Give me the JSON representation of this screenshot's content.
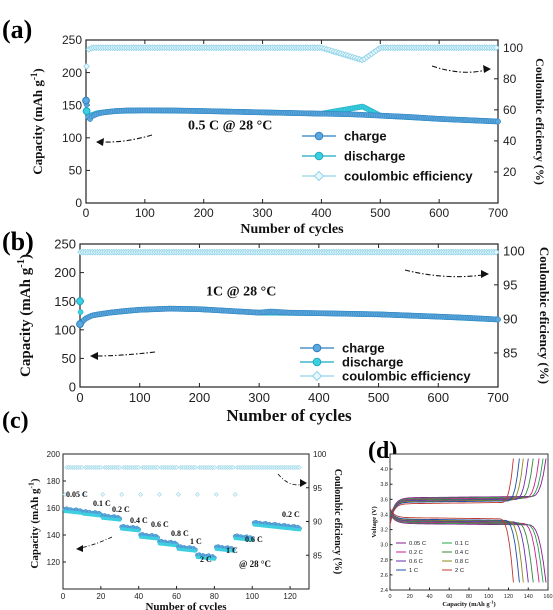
{
  "chart_data": [
    {
      "panel": "(a)",
      "type": "scatter",
      "xlabel": "Number of cycles",
      "ylabel": "Capacity (mAh g",
      "ylabel_sup": "-1",
      "ylabel_end": ")",
      "y2label": "Coulombic eficiency (%)",
      "xlim": [
        0,
        700
      ],
      "ylim": [
        0,
        250
      ],
      "y2lim": [
        0,
        105
      ],
      "xticks": [
        "0",
        "100",
        "200",
        "300",
        "400",
        "500",
        "600",
        "700"
      ],
      "yticks": [
        "0",
        "50",
        "100",
        "150",
        "200",
        "250"
      ],
      "y2ticks": [
        "20",
        "40",
        "60",
        "80",
        "100"
      ],
      "annotation": "0.5 C @ 28 °C",
      "legend_position": "center-right",
      "series": [
        {
          "name": "charge",
          "axis": "left",
          "x": [
            0,
            5,
            10,
            20,
            30,
            50,
            70,
            100,
            150,
            200,
            250,
            300,
            350,
            400,
            450,
            500,
            550,
            600,
            650,
            700
          ],
          "y": [
            157,
            126,
            133,
            137,
            139,
            141,
            142,
            142,
            142,
            141,
            140,
            139,
            138,
            137,
            136,
            134,
            132,
            129,
            127,
            125
          ]
        },
        {
          "name": "discharge",
          "axis": "left",
          "x": [
            1,
            3,
            5,
            10,
            20,
            30,
            50,
            100,
            200,
            300,
            400,
            470,
            500,
            600,
            700
          ],
          "y": [
            141,
            130,
            132,
            135,
            138,
            139,
            141,
            142,
            141,
            139,
            137,
            148,
            134,
            129,
            125
          ]
        },
        {
          "name": "coulombic efficiency",
          "axis": "right",
          "x": [
            1,
            3,
            5,
            10,
            50,
            100,
            200,
            300,
            400,
            470,
            500,
            600,
            700
          ],
          "y": [
            88,
            96,
            99,
            100,
            100,
            100,
            100,
            100,
            100,
            92,
            100,
            100,
            100
          ]
        }
      ]
    },
    {
      "panel": "(b)",
      "type": "scatter",
      "xlabel": "Number of cycles",
      "ylabel": "Capacity (mAh g",
      "ylabel_sup": "-1",
      "ylabel_end": ")",
      "y2label": "Coulombic eficiency (%)",
      "xlim": [
        0,
        700
      ],
      "ylim": [
        0,
        250
      ],
      "y2lim": [
        80,
        101
      ],
      "xticks": [
        "0",
        "100",
        "200",
        "300",
        "400",
        "500",
        "600",
        "700"
      ],
      "yticks": [
        "0",
        "50",
        "100",
        "150",
        "200",
        "250"
      ],
      "y2ticks": [
        "85",
        "90",
        "95",
        "100"
      ],
      "annotation": "1C @ 28 °C",
      "legend_position": "bottom-right",
      "series": [
        {
          "name": "charge",
          "axis": "left",
          "x": [
            0,
            5,
            10,
            20,
            30,
            50,
            75,
            100,
            150,
            200,
            250,
            300,
            320,
            350,
            400,
            450,
            500,
            550,
            600,
            650,
            700
          ],
          "y": [
            110,
            115,
            120,
            125,
            127,
            130,
            133,
            135,
            137,
            136,
            133,
            130,
            132,
            130,
            129,
            128,
            127,
            125,
            123,
            121,
            118
          ]
        },
        {
          "name": "discharge",
          "axis": "left",
          "x": [
            0,
            2,
            5,
            10,
            20,
            50,
            100,
            150,
            200,
            300,
            400,
            500,
            600,
            700
          ],
          "y": [
            150,
            112,
            116,
            120,
            125,
            130,
            135,
            137,
            136,
            130,
            129,
            127,
            123,
            118
          ]
        },
        {
          "name": "coulombic efficiency",
          "axis": "right",
          "x": [
            0,
            50,
            100,
            200,
            300,
            400,
            500,
            600,
            700
          ],
          "y": [
            99.8,
            99.8,
            99.8,
            99.8,
            99.8,
            99.8,
            99.8,
            99.8,
            99.8
          ]
        }
      ]
    },
    {
      "panel": "(c)",
      "type": "scatter",
      "xlabel": "Number of cycles",
      "ylabel": "Capacity (mAh g",
      "ylabel_sup": "-1",
      "ylabel_end": ")",
      "y2label": "Coulombic eficiency (%)",
      "xlim": [
        0,
        130
      ],
      "ylim": [
        100,
        200
      ],
      "y2lim": [
        80,
        100
      ],
      "xticks": [
        "0",
        "20",
        "40",
        "60",
        "80",
        "100",
        "120"
      ],
      "yticks": [
        "120",
        "140",
        "160",
        "180",
        "200"
      ],
      "y2ticks": [
        "85",
        "90",
        "95",
        "100"
      ],
      "annotation": "@ 28 °C",
      "rate_labels": [
        "0.05 C",
        "0.1 C",
        "0.2 C",
        "0.4 C",
        "0.6 C",
        "0.8 C",
        "1 C",
        "2 C",
        "1 C",
        "0.6 C",
        "0.2 C"
      ],
      "rate_steps": [
        {
          "rate": "0.05 C",
          "x0": 1,
          "x1": 10,
          "y": 159
        },
        {
          "rate": "0.1 C",
          "x0": 11,
          "x1": 20,
          "y": 157
        },
        {
          "rate": "0.2 C",
          "x0": 21,
          "x1": 30,
          "y": 154
        },
        {
          "rate": "0.4 C",
          "x0": 31,
          "x1": 40,
          "y": 146
        },
        {
          "rate": "0.6 C",
          "x0": 41,
          "x1": 50,
          "y": 140
        },
        {
          "rate": "0.8 C",
          "x0": 51,
          "x1": 60,
          "y": 135
        },
        {
          "rate": "1 C",
          "x0": 61,
          "x1": 70,
          "y": 131
        },
        {
          "rate": "2 C",
          "x0": 71,
          "x1": 80,
          "y": 125
        },
        {
          "rate": "1 C",
          "x0": 81,
          "x1": 90,
          "y": 131
        },
        {
          "rate": "0.6 C",
          "x0": 91,
          "x1": 100,
          "y": 139
        },
        {
          "rate": "0.2 C",
          "x0": 101,
          "x1": 125,
          "y": 149
        }
      ],
      "ce_value": 98
    },
    {
      "panel": "(d)",
      "type": "line",
      "xlabel": "Capacity (mAh g",
      "xlabel_sup": "-1",
      "xlabel_end": ")",
      "ylabel": "Voltage (V)",
      "xlim": [
        0,
        160
      ],
      "ylim": [
        2.4,
        4.2
      ],
      "xticks": [
        "0",
        "20",
        "40",
        "60",
        "80",
        "100",
        "120",
        "140",
        "160"
      ],
      "yticks": [
        "2.4",
        "2.6",
        "2.8",
        "3.0",
        "3.2",
        "3.4",
        "3.6",
        "3.8",
        "4.0"
      ],
      "legend": [
        "0.05 C",
        "0.1 C",
        "0.2 C",
        "0.4 C",
        "0.6 C",
        "0.8 C",
        "1 C",
        "2 C"
      ],
      "series": [
        {
          "name": "0.05 C",
          "color": "#8a1b8e",
          "capacity": 158,
          "charge_plateau": 3.62,
          "discharge_plateau": 3.28
        },
        {
          "name": "0.1 C",
          "color": "#1fa64a",
          "capacity": 155,
          "charge_plateau": 3.61,
          "discharge_plateau": 3.29
        },
        {
          "name": "0.2 C",
          "color": "#c8218a",
          "capacity": 151,
          "charge_plateau": 3.6,
          "discharge_plateau": 3.3
        },
        {
          "name": "0.4 C",
          "color": "#2e8b3a",
          "capacity": 145,
          "charge_plateau": 3.59,
          "discharge_plateau": 3.31
        },
        {
          "name": "0.6 C",
          "color": "#6a2bb5",
          "capacity": 140,
          "charge_plateau": 3.58,
          "discharge_plateau": 3.32
        },
        {
          "name": "0.8 C",
          "color": "#8a8a1a",
          "capacity": 135,
          "charge_plateau": 3.57,
          "discharge_plateau": 3.33
        },
        {
          "name": "1 C",
          "color": "#1c4fa8",
          "capacity": 131,
          "charge_plateau": 3.56,
          "discharge_plateau": 3.34
        },
        {
          "name": "2 C",
          "color": "#c0392b",
          "capacity": 125,
          "charge_plateau": 3.54,
          "discharge_plateau": 3.36
        }
      ]
    }
  ]
}
